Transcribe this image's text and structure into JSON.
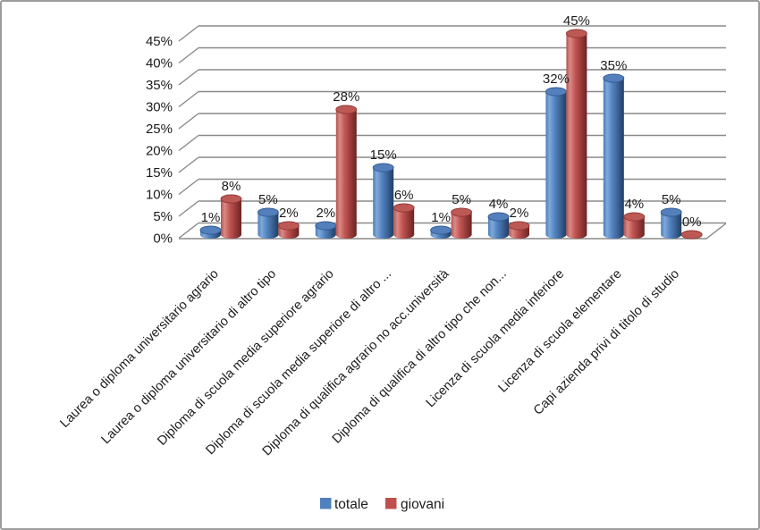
{
  "window": {
    "background": "#ffffff",
    "border_color": "#9c9c9c"
  },
  "chart_data": {
    "type": "bar",
    "style": "3d-cylinder",
    "title": "",
    "xlabel": "",
    "ylabel": "",
    "value_suffix": "%",
    "categories": [
      "Laurea o diploma universitario agrario",
      "Laurea o diploma universitario di altro tipo",
      "Diploma di scuola media superiore agrario",
      "Diploma di scuola media superiore di altro ...",
      "Diploma di qualifica agrario no acc.università",
      "Diploma di qualifica di altro tipo che non...",
      "Licenza di scuola media inferiore",
      "Licenza di scuola elementare",
      "Capi azienda privi di titolo di studio"
    ],
    "series": [
      {
        "name": "totale",
        "color": "#4F81BD",
        "values": [
          1,
          5,
          2,
          15,
          1,
          4,
          32,
          35,
          5
        ],
        "data_labels": [
          "1%",
          "5%",
          "2%",
          "15%",
          "1%",
          "4%",
          "32%",
          "35%",
          "5%"
        ]
      },
      {
        "name": "giovani",
        "color": "#C0504D",
        "values": [
          8,
          2,
          28,
          6,
          5,
          2,
          45,
          4,
          0
        ],
        "data_labels": [
          "8%",
          "2%",
          "28%",
          "6%",
          "5%",
          "2%",
          "45%",
          "4%",
          "0%"
        ]
      }
    ],
    "y_axis": {
      "min": 0,
      "max": 45,
      "step": 5,
      "tick_labels": [
        "0%",
        "5%",
        "10%",
        "15%",
        "20%",
        "25%",
        "30%",
        "35%",
        "40%",
        "45%"
      ]
    },
    "legend": {
      "position": "bottom",
      "entries": [
        {
          "label": "totale",
          "color": "#4F81BD"
        },
        {
          "label": "giovani",
          "color": "#C0504D"
        }
      ]
    },
    "gridlines": true,
    "gridline_color": "#8a8a8a",
    "text_color": "#1c1c1c"
  }
}
